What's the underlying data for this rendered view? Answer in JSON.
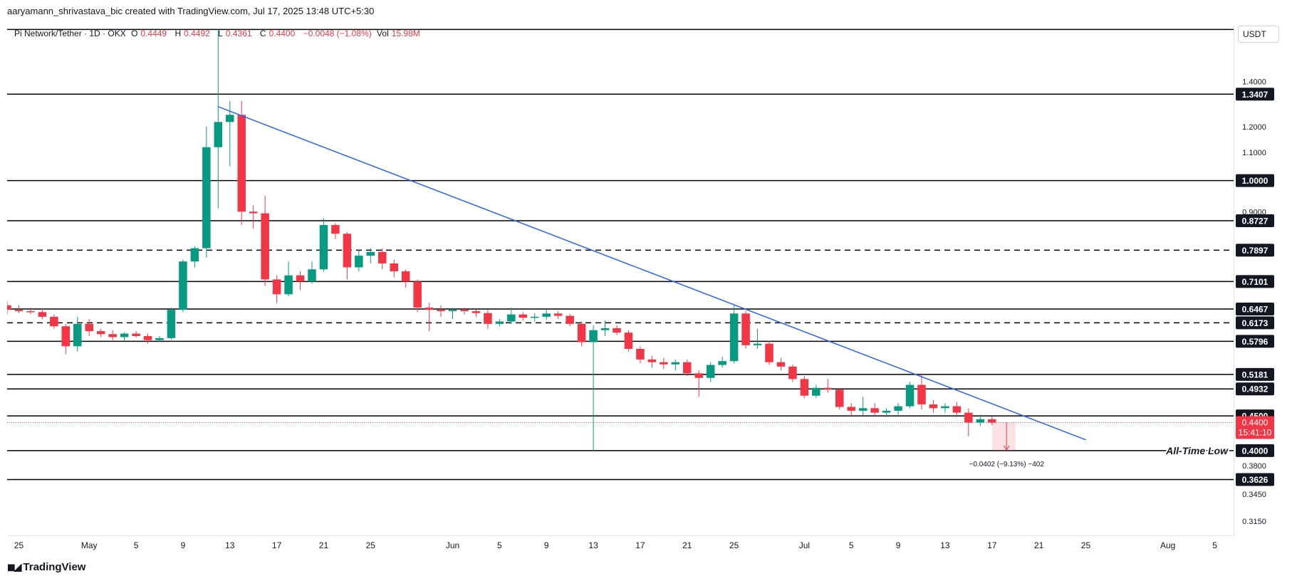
{
  "header": {
    "attribution": "aaryamann_shrivastava_bic created with TradingView.com, Jul 17, 2025 13:48 UTC+5:30"
  },
  "symbol": {
    "name": "Pi Network/Tether · 1D · OKX",
    "open_label": "O",
    "open_value": "0.4449",
    "high_label": "H",
    "high_value": "0.4492",
    "low_label": "L",
    "low_value": "0.4361",
    "close_label": "C",
    "close_value": "0.4400",
    "change": "−0.0048 (−1.08%)",
    "vol_label": "Vol",
    "vol_value": "15.98M"
  },
  "price_scale": {
    "unit": "USDT"
  },
  "footer": {
    "brand": "TradingView",
    "logo_icon": "tradingview-logo-icon"
  },
  "colors": {
    "up": "#089981",
    "down": "#f23645",
    "trendline": "#2962ff",
    "level": "#000000"
  },
  "chart_data": {
    "type": "candlestick",
    "y_axis": "price (USDT), log scale",
    "ylim": [
      0.3,
      1.7
    ],
    "x_range": [
      "2025-04-24",
      "2025-08-06"
    ],
    "price_ticks": [
      "1.4000",
      "1.2000",
      "1.1000",
      "0.9000",
      "0.3800",
      "0.3450",
      "0.3150"
    ],
    "date_ticks": [
      {
        "date": "2025-04-25",
        "label": "25"
      },
      {
        "date": "2025-05-01",
        "label": "May"
      },
      {
        "date": "2025-05-05",
        "label": "5"
      },
      {
        "date": "2025-05-09",
        "label": "9"
      },
      {
        "date": "2025-05-13",
        "label": "13"
      },
      {
        "date": "2025-05-17",
        "label": "17"
      },
      {
        "date": "2025-05-21",
        "label": "21"
      },
      {
        "date": "2025-05-25",
        "label": "25"
      },
      {
        "date": "2025-06-01",
        "label": "Jun"
      },
      {
        "date": "2025-06-05",
        "label": "5"
      },
      {
        "date": "2025-06-09",
        "label": "9"
      },
      {
        "date": "2025-06-13",
        "label": "13"
      },
      {
        "date": "2025-06-17",
        "label": "17"
      },
      {
        "date": "2025-06-21",
        "label": "21"
      },
      {
        "date": "2025-06-25",
        "label": "25"
      },
      {
        "date": "2025-07-01",
        "label": "Jul"
      },
      {
        "date": "2025-07-05",
        "label": "5"
      },
      {
        "date": "2025-07-09",
        "label": "9"
      },
      {
        "date": "2025-07-13",
        "label": "13"
      },
      {
        "date": "2025-07-17",
        "label": "17"
      },
      {
        "date": "2025-07-21",
        "label": "21"
      },
      {
        "date": "2025-07-25",
        "label": "25"
      },
      {
        "date": "2025-08-01",
        "label": "Aug"
      },
      {
        "date": "2025-08-05",
        "label": "5"
      }
    ],
    "horizontal_levels": [
      {
        "price": 1.67,
        "style": "solid",
        "label": ""
      },
      {
        "price": 1.3407,
        "style": "solid",
        "label": "1.3407"
      },
      {
        "price": 1.0,
        "style": "solid",
        "label": "1.0000"
      },
      {
        "price": 0.8727,
        "style": "solid",
        "label": "0.8727"
      },
      {
        "price": 0.7897,
        "style": "dashed",
        "label": "0.7897"
      },
      {
        "price": 0.7101,
        "style": "solid",
        "label": "0.7101"
      },
      {
        "price": 0.6467,
        "style": "solid",
        "label": "0.6467"
      },
      {
        "price": 0.6173,
        "style": "dashed",
        "label": "0.6173"
      },
      {
        "price": 0.5796,
        "style": "solid",
        "label": "0.5796"
      },
      {
        "price": 0.5181,
        "style": "solid",
        "label": "0.5181"
      },
      {
        "price": 0.4932,
        "style": "solid",
        "label": "0.4932"
      },
      {
        "price": 0.45,
        "style": "solid",
        "label": "0.4500"
      },
      {
        "price": 0.4,
        "style": "solid",
        "label": "0.4000"
      },
      {
        "price": 0.3626,
        "style": "solid",
        "label": "0.3626"
      }
    ],
    "current_price": {
      "label": "0.4400",
      "countdown": "15:41:10",
      "price": 0.44
    },
    "annotations": {
      "all_time_low": "All-Time Low",
      "measure": "−0.0402 (−9.13%) −402"
    },
    "trendline": {
      "from": {
        "date": "2025-05-12",
        "price": 1.285
      },
      "to": {
        "date": "2025-07-25",
        "price": 0.415
      }
    },
    "measure_box": {
      "start_date": "2025-07-17",
      "end_date": "2025-07-19",
      "from_price": 0.44,
      "to_price": 0.4
    },
    "candles": [
      {
        "date": "2025-04-24",
        "o": 0.655,
        "h": 0.665,
        "l": 0.635,
        "c": 0.645
      },
      {
        "date": "2025-04-25",
        "o": 0.645,
        "h": 0.655,
        "l": 0.638,
        "c": 0.642
      },
      {
        "date": "2025-04-26",
        "o": 0.642,
        "h": 0.65,
        "l": 0.636,
        "c": 0.64
      },
      {
        "date": "2025-04-27",
        "o": 0.64,
        "h": 0.648,
        "l": 0.625,
        "c": 0.63
      },
      {
        "date": "2025-04-28",
        "o": 0.63,
        "h": 0.635,
        "l": 0.605,
        "c": 0.61
      },
      {
        "date": "2025-04-29",
        "o": 0.61,
        "h": 0.615,
        "l": 0.555,
        "c": 0.57
      },
      {
        "date": "2025-04-30",
        "o": 0.57,
        "h": 0.63,
        "l": 0.56,
        "c": 0.615
      },
      {
        "date": "2025-05-01",
        "o": 0.615,
        "h": 0.625,
        "l": 0.59,
        "c": 0.6
      },
      {
        "date": "2025-05-02",
        "o": 0.6,
        "h": 0.605,
        "l": 0.588,
        "c": 0.594
      },
      {
        "date": "2025-05-03",
        "o": 0.594,
        "h": 0.602,
        "l": 0.582,
        "c": 0.588
      },
      {
        "date": "2025-05-04",
        "o": 0.588,
        "h": 0.598,
        "l": 0.58,
        "c": 0.595
      },
      {
        "date": "2025-05-05",
        "o": 0.595,
        "h": 0.6,
        "l": 0.587,
        "c": 0.59
      },
      {
        "date": "2025-05-06",
        "o": 0.59,
        "h": 0.595,
        "l": 0.575,
        "c": 0.582
      },
      {
        "date": "2025-05-07",
        "o": 0.582,
        "h": 0.59,
        "l": 0.578,
        "c": 0.586
      },
      {
        "date": "2025-05-08",
        "o": 0.586,
        "h": 0.65,
        "l": 0.583,
        "c": 0.645
      },
      {
        "date": "2025-05-09",
        "o": 0.645,
        "h": 0.765,
        "l": 0.64,
        "c": 0.76
      },
      {
        "date": "2025-05-10",
        "o": 0.76,
        "h": 0.8,
        "l": 0.745,
        "c": 0.795
      },
      {
        "date": "2025-05-11",
        "o": 0.795,
        "h": 1.2,
        "l": 0.77,
        "c": 1.12
      },
      {
        "date": "2025-05-12",
        "o": 1.12,
        "h": 1.67,
        "l": 0.91,
        "c": 1.22
      },
      {
        "date": "2025-05-13",
        "o": 1.22,
        "h": 1.31,
        "l": 1.05,
        "c": 1.25
      },
      {
        "date": "2025-05-14",
        "o": 1.25,
        "h": 1.31,
        "l": 0.86,
        "c": 0.9
      },
      {
        "date": "2025-05-15",
        "o": 0.9,
        "h": 0.92,
        "l": 0.85,
        "c": 0.895
      },
      {
        "date": "2025-05-16",
        "o": 0.895,
        "h": 0.95,
        "l": 0.7,
        "c": 0.715
      },
      {
        "date": "2025-05-17",
        "o": 0.715,
        "h": 0.725,
        "l": 0.66,
        "c": 0.68
      },
      {
        "date": "2025-05-18",
        "o": 0.68,
        "h": 0.76,
        "l": 0.675,
        "c": 0.725
      },
      {
        "date": "2025-05-19",
        "o": 0.725,
        "h": 0.735,
        "l": 0.69,
        "c": 0.71
      },
      {
        "date": "2025-05-20",
        "o": 0.71,
        "h": 0.76,
        "l": 0.705,
        "c": 0.74
      },
      {
        "date": "2025-05-21",
        "o": 0.74,
        "h": 0.88,
        "l": 0.735,
        "c": 0.86
      },
      {
        "date": "2025-05-22",
        "o": 0.86,
        "h": 0.865,
        "l": 0.82,
        "c": 0.835
      },
      {
        "date": "2025-05-23",
        "o": 0.835,
        "h": 0.84,
        "l": 0.715,
        "c": 0.745
      },
      {
        "date": "2025-05-24",
        "o": 0.745,
        "h": 0.79,
        "l": 0.735,
        "c": 0.775
      },
      {
        "date": "2025-05-25",
        "o": 0.775,
        "h": 0.795,
        "l": 0.755,
        "c": 0.785
      },
      {
        "date": "2025-05-26",
        "o": 0.785,
        "h": 0.795,
        "l": 0.74,
        "c": 0.755
      },
      {
        "date": "2025-05-27",
        "o": 0.755,
        "h": 0.765,
        "l": 0.72,
        "c": 0.735
      },
      {
        "date": "2025-05-28",
        "o": 0.735,
        "h": 0.74,
        "l": 0.695,
        "c": 0.71
      },
      {
        "date": "2025-05-29",
        "o": 0.71,
        "h": 0.715,
        "l": 0.64,
        "c": 0.65
      },
      {
        "date": "2025-05-30",
        "o": 0.65,
        "h": 0.66,
        "l": 0.6,
        "c": 0.645
      },
      {
        "date": "2025-05-31",
        "o": 0.645,
        "h": 0.655,
        "l": 0.63,
        "c": 0.642
      },
      {
        "date": "2025-06-01",
        "o": 0.642,
        "h": 0.65,
        "l": 0.625,
        "c": 0.645
      },
      {
        "date": "2025-06-02",
        "o": 0.645,
        "h": 0.65,
        "l": 0.635,
        "c": 0.642
      },
      {
        "date": "2025-06-03",
        "o": 0.642,
        "h": 0.646,
        "l": 0.63,
        "c": 0.638
      },
      {
        "date": "2025-06-04",
        "o": 0.638,
        "h": 0.645,
        "l": 0.605,
        "c": 0.615
      },
      {
        "date": "2025-06-05",
        "o": 0.615,
        "h": 0.625,
        "l": 0.61,
        "c": 0.62
      },
      {
        "date": "2025-06-06",
        "o": 0.62,
        "h": 0.65,
        "l": 0.615,
        "c": 0.635
      },
      {
        "date": "2025-06-07",
        "o": 0.635,
        "h": 0.64,
        "l": 0.622,
        "c": 0.628
      },
      {
        "date": "2025-06-08",
        "o": 0.628,
        "h": 0.638,
        "l": 0.62,
        "c": 0.63
      },
      {
        "date": "2025-06-09",
        "o": 0.63,
        "h": 0.645,
        "l": 0.624,
        "c": 0.637
      },
      {
        "date": "2025-06-10",
        "o": 0.637,
        "h": 0.642,
        "l": 0.625,
        "c": 0.632
      },
      {
        "date": "2025-06-11",
        "o": 0.632,
        "h": 0.636,
        "l": 0.61,
        "c": 0.615
      },
      {
        "date": "2025-06-12",
        "o": 0.615,
        "h": 0.62,
        "l": 0.57,
        "c": 0.578
      },
      {
        "date": "2025-06-13",
        "o": 0.578,
        "h": 0.612,
        "l": 0.4,
        "c": 0.602
      },
      {
        "date": "2025-06-14",
        "o": 0.602,
        "h": 0.622,
        "l": 0.59,
        "c": 0.606
      },
      {
        "date": "2025-06-15",
        "o": 0.606,
        "h": 0.612,
        "l": 0.592,
        "c": 0.597
      },
      {
        "date": "2025-06-16",
        "o": 0.597,
        "h": 0.602,
        "l": 0.56,
        "c": 0.565
      },
      {
        "date": "2025-06-17",
        "o": 0.565,
        "h": 0.57,
        "l": 0.538,
        "c": 0.545
      },
      {
        "date": "2025-06-18",
        "o": 0.545,
        "h": 0.552,
        "l": 0.53,
        "c": 0.54
      },
      {
        "date": "2025-06-19",
        "o": 0.54,
        "h": 0.548,
        "l": 0.528,
        "c": 0.536
      },
      {
        "date": "2025-06-20",
        "o": 0.536,
        "h": 0.545,
        "l": 0.525,
        "c": 0.54
      },
      {
        "date": "2025-06-21",
        "o": 0.54,
        "h": 0.545,
        "l": 0.515,
        "c": 0.52
      },
      {
        "date": "2025-06-22",
        "o": 0.52,
        "h": 0.525,
        "l": 0.48,
        "c": 0.512
      },
      {
        "date": "2025-06-23",
        "o": 0.512,
        "h": 0.54,
        "l": 0.505,
        "c": 0.535
      },
      {
        "date": "2025-06-24",
        "o": 0.535,
        "h": 0.55,
        "l": 0.53,
        "c": 0.542
      },
      {
        "date": "2025-06-25",
        "o": 0.542,
        "h": 0.655,
        "l": 0.538,
        "c": 0.637
      },
      {
        "date": "2025-06-26",
        "o": 0.637,
        "h": 0.643,
        "l": 0.565,
        "c": 0.572
      },
      {
        "date": "2025-06-27",
        "o": 0.572,
        "h": 0.605,
        "l": 0.565,
        "c": 0.575
      },
      {
        "date": "2025-06-28",
        "o": 0.575,
        "h": 0.58,
        "l": 0.535,
        "c": 0.54
      },
      {
        "date": "2025-06-29",
        "o": 0.54,
        "h": 0.548,
        "l": 0.525,
        "c": 0.532
      },
      {
        "date": "2025-06-30",
        "o": 0.532,
        "h": 0.536,
        "l": 0.505,
        "c": 0.51
      },
      {
        "date": "2025-07-01",
        "o": 0.51,
        "h": 0.515,
        "l": 0.478,
        "c": 0.482
      },
      {
        "date": "2025-07-02",
        "o": 0.482,
        "h": 0.5,
        "l": 0.478,
        "c": 0.495
      },
      {
        "date": "2025-07-03",
        "o": 0.495,
        "h": 0.51,
        "l": 0.487,
        "c": 0.492
      },
      {
        "date": "2025-07-04",
        "o": 0.492,
        "h": 0.495,
        "l": 0.46,
        "c": 0.464
      },
      {
        "date": "2025-07-05",
        "o": 0.464,
        "h": 0.47,
        "l": 0.45,
        "c": 0.458
      },
      {
        "date": "2025-07-06",
        "o": 0.458,
        "h": 0.48,
        "l": 0.45,
        "c": 0.462
      },
      {
        "date": "2025-07-07",
        "o": 0.462,
        "h": 0.47,
        "l": 0.45,
        "c": 0.455
      },
      {
        "date": "2025-07-08",
        "o": 0.455,
        "h": 0.462,
        "l": 0.448,
        "c": 0.458
      },
      {
        "date": "2025-07-09",
        "o": 0.458,
        "h": 0.47,
        "l": 0.452,
        "c": 0.465
      },
      {
        "date": "2025-07-10",
        "o": 0.465,
        "h": 0.505,
        "l": 0.462,
        "c": 0.5
      },
      {
        "date": "2025-07-11",
        "o": 0.5,
        "h": 0.52,
        "l": 0.46,
        "c": 0.468
      },
      {
        "date": "2025-07-12",
        "o": 0.468,
        "h": 0.475,
        "l": 0.455,
        "c": 0.462
      },
      {
        "date": "2025-07-13",
        "o": 0.462,
        "h": 0.47,
        "l": 0.455,
        "c": 0.465
      },
      {
        "date": "2025-07-14",
        "o": 0.465,
        "h": 0.472,
        "l": 0.448,
        "c": 0.455
      },
      {
        "date": "2025-07-15",
        "o": 0.455,
        "h": 0.462,
        "l": 0.42,
        "c": 0.44
      },
      {
        "date": "2025-07-16",
        "o": 0.44,
        "h": 0.452,
        "l": 0.435,
        "c": 0.445
      },
      {
        "date": "2025-07-17",
        "o": 0.4449,
        "h": 0.4492,
        "l": 0.4361,
        "c": 0.44
      }
    ]
  }
}
